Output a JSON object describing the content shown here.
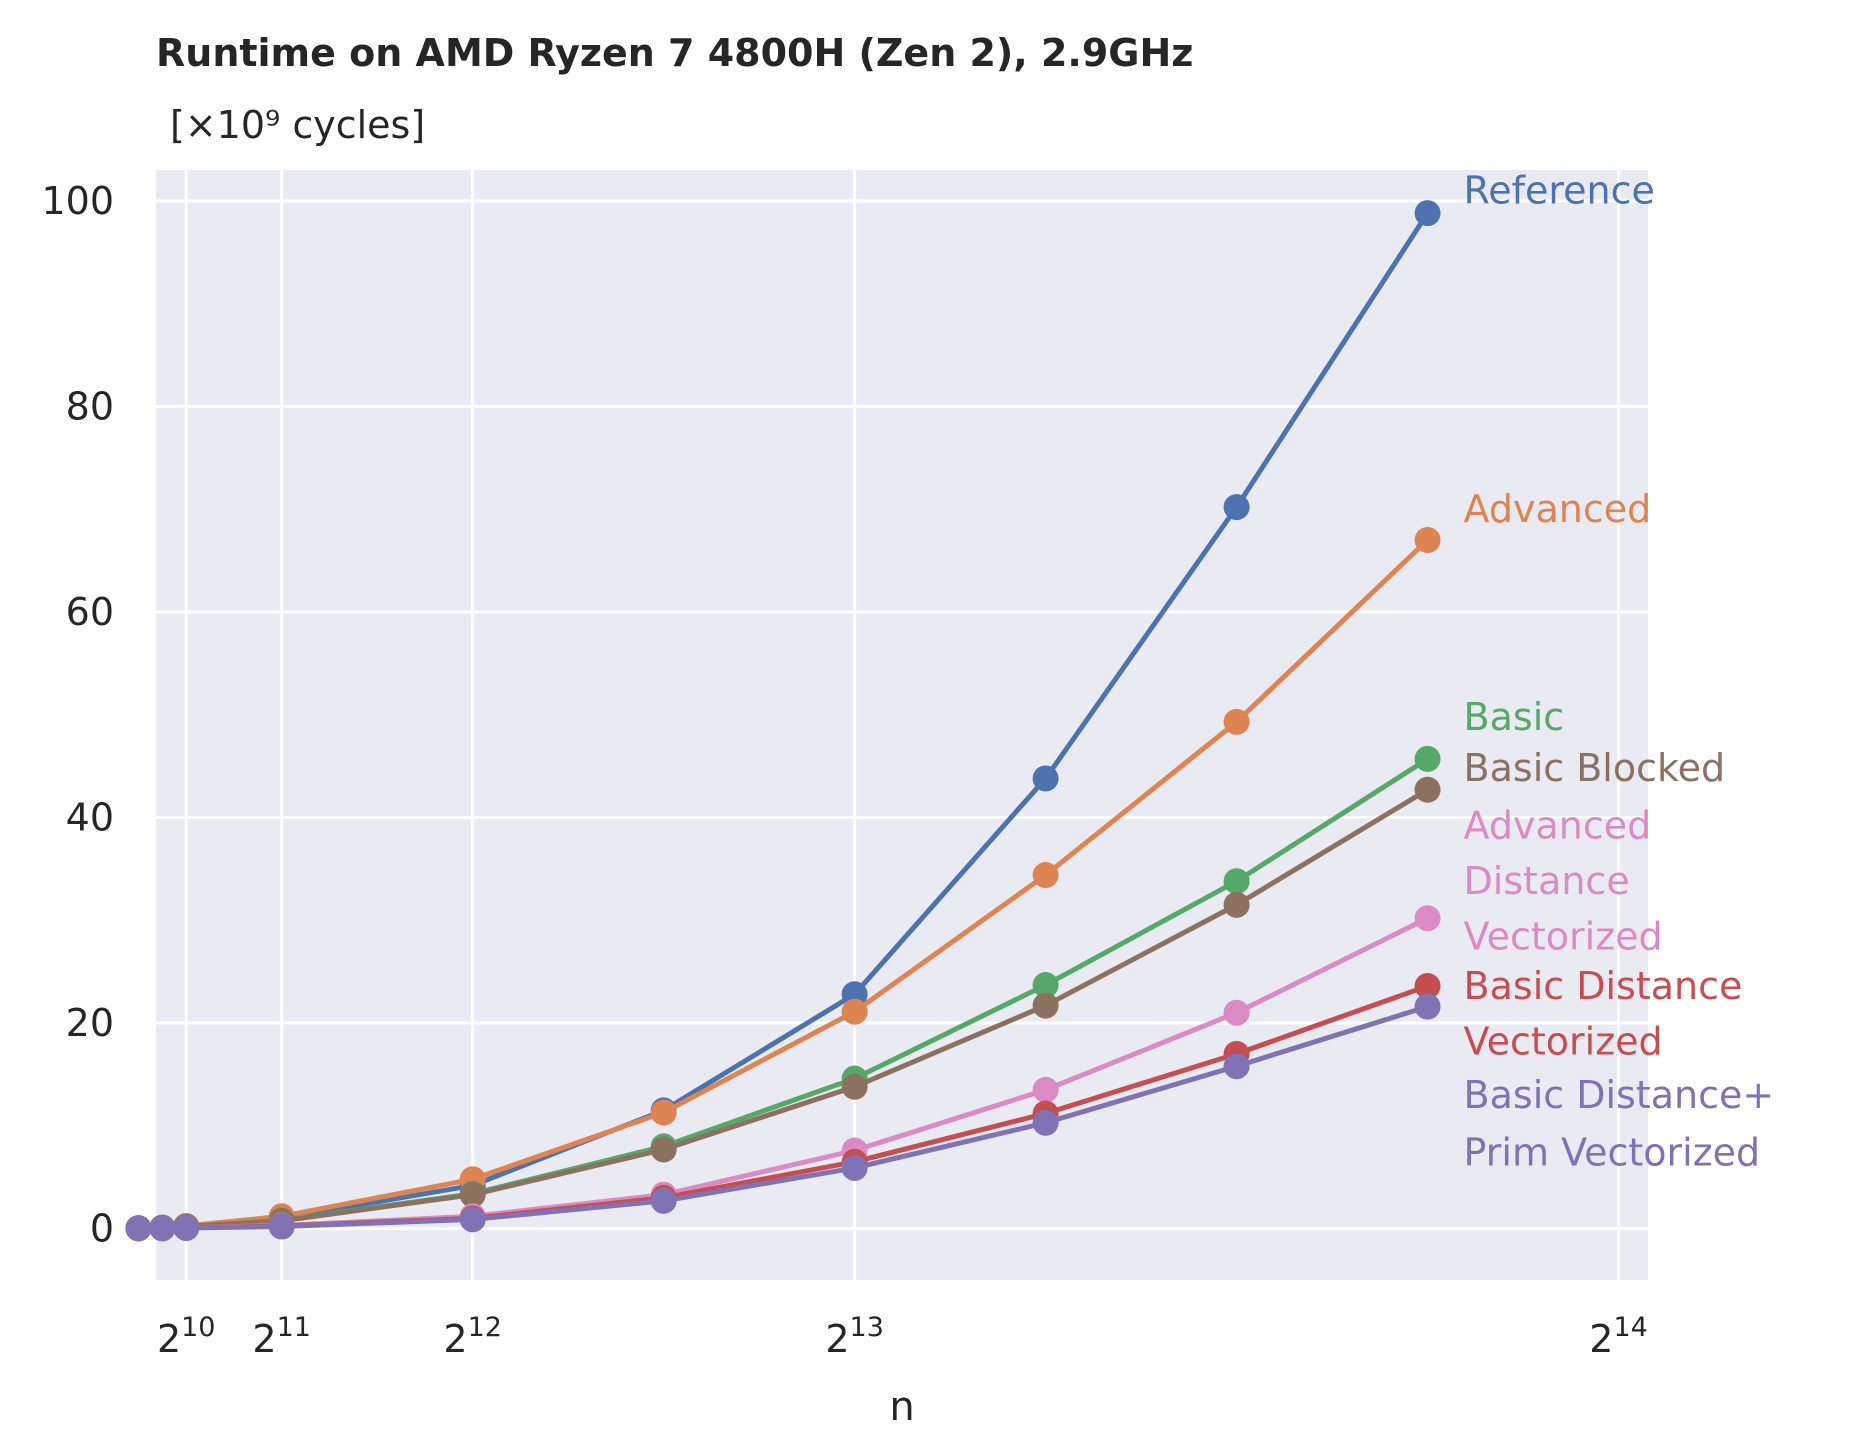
{
  "chart_data": {
    "type": "line",
    "title": "Runtime on AMD Ryzen 7 4800H (Zen 2),  2.9GHz",
    "subtitle": "[×10⁹ cycles]",
    "xlabel": "n",
    "ylabel": "",
    "x_scale": "linear",
    "xlim": [
      700,
      16700
    ],
    "ylim": [
      -5,
      103
    ],
    "x_ticks": [
      {
        "value": 1024,
        "base": "2",
        "exp": "10"
      },
      {
        "value": 2048,
        "base": "2",
        "exp": "11"
      },
      {
        "value": 4096,
        "base": "2",
        "exp": "12"
      },
      {
        "value": 8192,
        "base": "2",
        "exp": "13"
      },
      {
        "value": 16384,
        "base": "2",
        "exp": "14"
      }
    ],
    "y_ticks": [
      0,
      20,
      40,
      60,
      80,
      100
    ],
    "grid": true,
    "legend": "inline labels at line ends",
    "background": "#eaeaf2",
    "x": [
      512,
      768,
      1024,
      2048,
      4096,
      6144,
      8192,
      10240,
      12288,
      14336
    ],
    "series": [
      {
        "name": "Reference",
        "color": "#4c72b0",
        "label_lines": [
          "Reference"
        ],
        "label_y": [
          101
        ],
        "values": [
          0.05,
          0.1,
          0.2,
          1.0,
          4.2,
          11.5,
          22.8,
          43.8,
          70.2,
          98.8
        ]
      },
      {
        "name": "Advanced",
        "color": "#dd8452",
        "label_lines": [
          "Advanced"
        ],
        "label_y": [
          70
        ],
        "values": [
          0.05,
          0.1,
          0.25,
          1.2,
          4.8,
          11.3,
          21.1,
          34.4,
          49.3,
          67.0
        ]
      },
      {
        "name": "Basic",
        "color": "#55a868",
        "label_lines": [
          "Basic"
        ],
        "label_y": [
          49.8
        ],
        "values": [
          0.04,
          0.08,
          0.2,
          0.8,
          3.4,
          8.0,
          14.6,
          23.7,
          33.8,
          45.7
        ]
      },
      {
        "name": "Basic Blocked",
        "color": "#8c7160",
        "label_lines": [
          "Basic Blocked"
        ],
        "label_y": [
          44.8
        ],
        "values": [
          0.04,
          0.08,
          0.2,
          0.75,
          3.3,
          7.7,
          13.8,
          21.7,
          31.5,
          42.7
        ]
      },
      {
        "name": "Advanced Distance Vectorized",
        "color": "#da8bc3",
        "label_lines": [
          "Advanced",
          "Distance",
          "Vectorized"
        ],
        "label_y": [
          39.2,
          33.8,
          28.4
        ],
        "values": [
          0.02,
          0.04,
          0.08,
          0.3,
          1.2,
          3.3,
          7.6,
          13.5,
          21.0,
          30.2
        ]
      },
      {
        "name": "Basic Distance Vectorized",
        "color": "#c44e52",
        "label_lines": [
          "Basic Distance",
          "Vectorized"
        ],
        "label_y": [
          23.6,
          18.2
        ],
        "values": [
          0.02,
          0.03,
          0.07,
          0.25,
          1.0,
          3.0,
          6.5,
          11.2,
          17.0,
          23.6
        ]
      },
      {
        "name": "Basic Distance+ Prim Vectorized",
        "color": "#8172b3",
        "label_lines": [
          "Basic Distance+",
          "Prim Vectorized"
        ],
        "label_y": [
          13.0,
          7.4
        ],
        "values": [
          0.02,
          0.03,
          0.06,
          0.2,
          0.9,
          2.7,
          5.9,
          10.3,
          15.8,
          21.6
        ]
      }
    ]
  }
}
